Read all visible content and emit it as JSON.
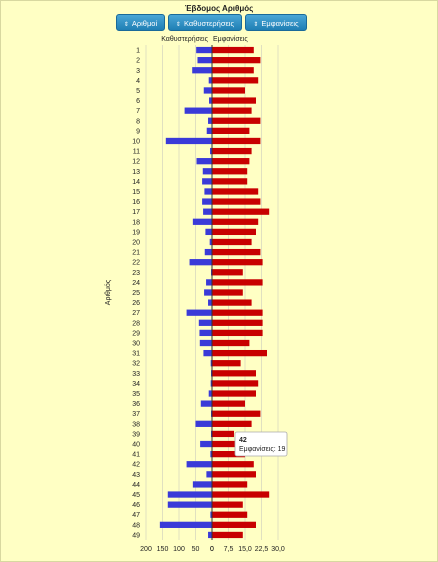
{
  "title": "Έβδομος Αριθμός",
  "buttons": [
    {
      "label": "Αριθμοί",
      "icon": "sort-icon"
    },
    {
      "label": "Καθυστερήσεις",
      "icon": "sort-icon"
    },
    {
      "label": "Εμφανίσεις",
      "icon": "sort-icon"
    }
  ],
  "colors": {
    "delays": "#3a3ad8",
    "appearances": "#c80000"
  },
  "chart_data": {
    "type": "bar",
    "orientation": "horizontal",
    "ylabel": "Αριθμός",
    "categories": [
      "1",
      "2",
      "3",
      "4",
      "5",
      "6",
      "7",
      "8",
      "9",
      "10",
      "11",
      "12",
      "13",
      "14",
      "15",
      "16",
      "17",
      "18",
      "19",
      "20",
      "21",
      "22",
      "23",
      "24",
      "25",
      "26",
      "27",
      "28",
      "29",
      "30",
      "31",
      "32",
      "33",
      "34",
      "35",
      "36",
      "37",
      "38",
      "39",
      "40",
      "41",
      "42",
      "43",
      "44",
      "45",
      "46",
      "47",
      "48",
      "49"
    ],
    "series": [
      {
        "name": "Καθυστερήσεις",
        "side": "left",
        "values": [
          48,
          44,
          60,
          10,
          25,
          9,
          83,
          12,
          16,
          140,
          6,
          47,
          28,
          30,
          23,
          30,
          27,
          58,
          20,
          7,
          22,
          68,
          3,
          18,
          24,
          12,
          77,
          40,
          38,
          37,
          26,
          4,
          3,
          4,
          10,
          34,
          3,
          50,
          3,
          36,
          5,
          77,
          17,
          58,
          134,
          134,
          5,
          158,
          12
        ],
        "axis_ticks": [
          "200",
          "150",
          "100",
          "50",
          "0"
        ],
        "range": [
          0,
          200
        ]
      },
      {
        "name": "Εμφανίσεις",
        "side": "right",
        "values": [
          19,
          22,
          19,
          21,
          15,
          20,
          18,
          22,
          17,
          22,
          18,
          17,
          16,
          16,
          21,
          22,
          26,
          21,
          20,
          18,
          22,
          23,
          14,
          23,
          14,
          18,
          23,
          23,
          23,
          17,
          25,
          13,
          20,
          21,
          20,
          15,
          22,
          18,
          10,
          16,
          15,
          19,
          20,
          16,
          26,
          14,
          16,
          20,
          14
        ],
        "axis_ticks": [
          "0",
          "7,5",
          "15,0",
          "22,5",
          "30,0"
        ],
        "range": [
          0,
          30
        ]
      }
    ]
  },
  "tooltip": {
    "title": "42",
    "text": "Εμφανίσεις: 19"
  }
}
